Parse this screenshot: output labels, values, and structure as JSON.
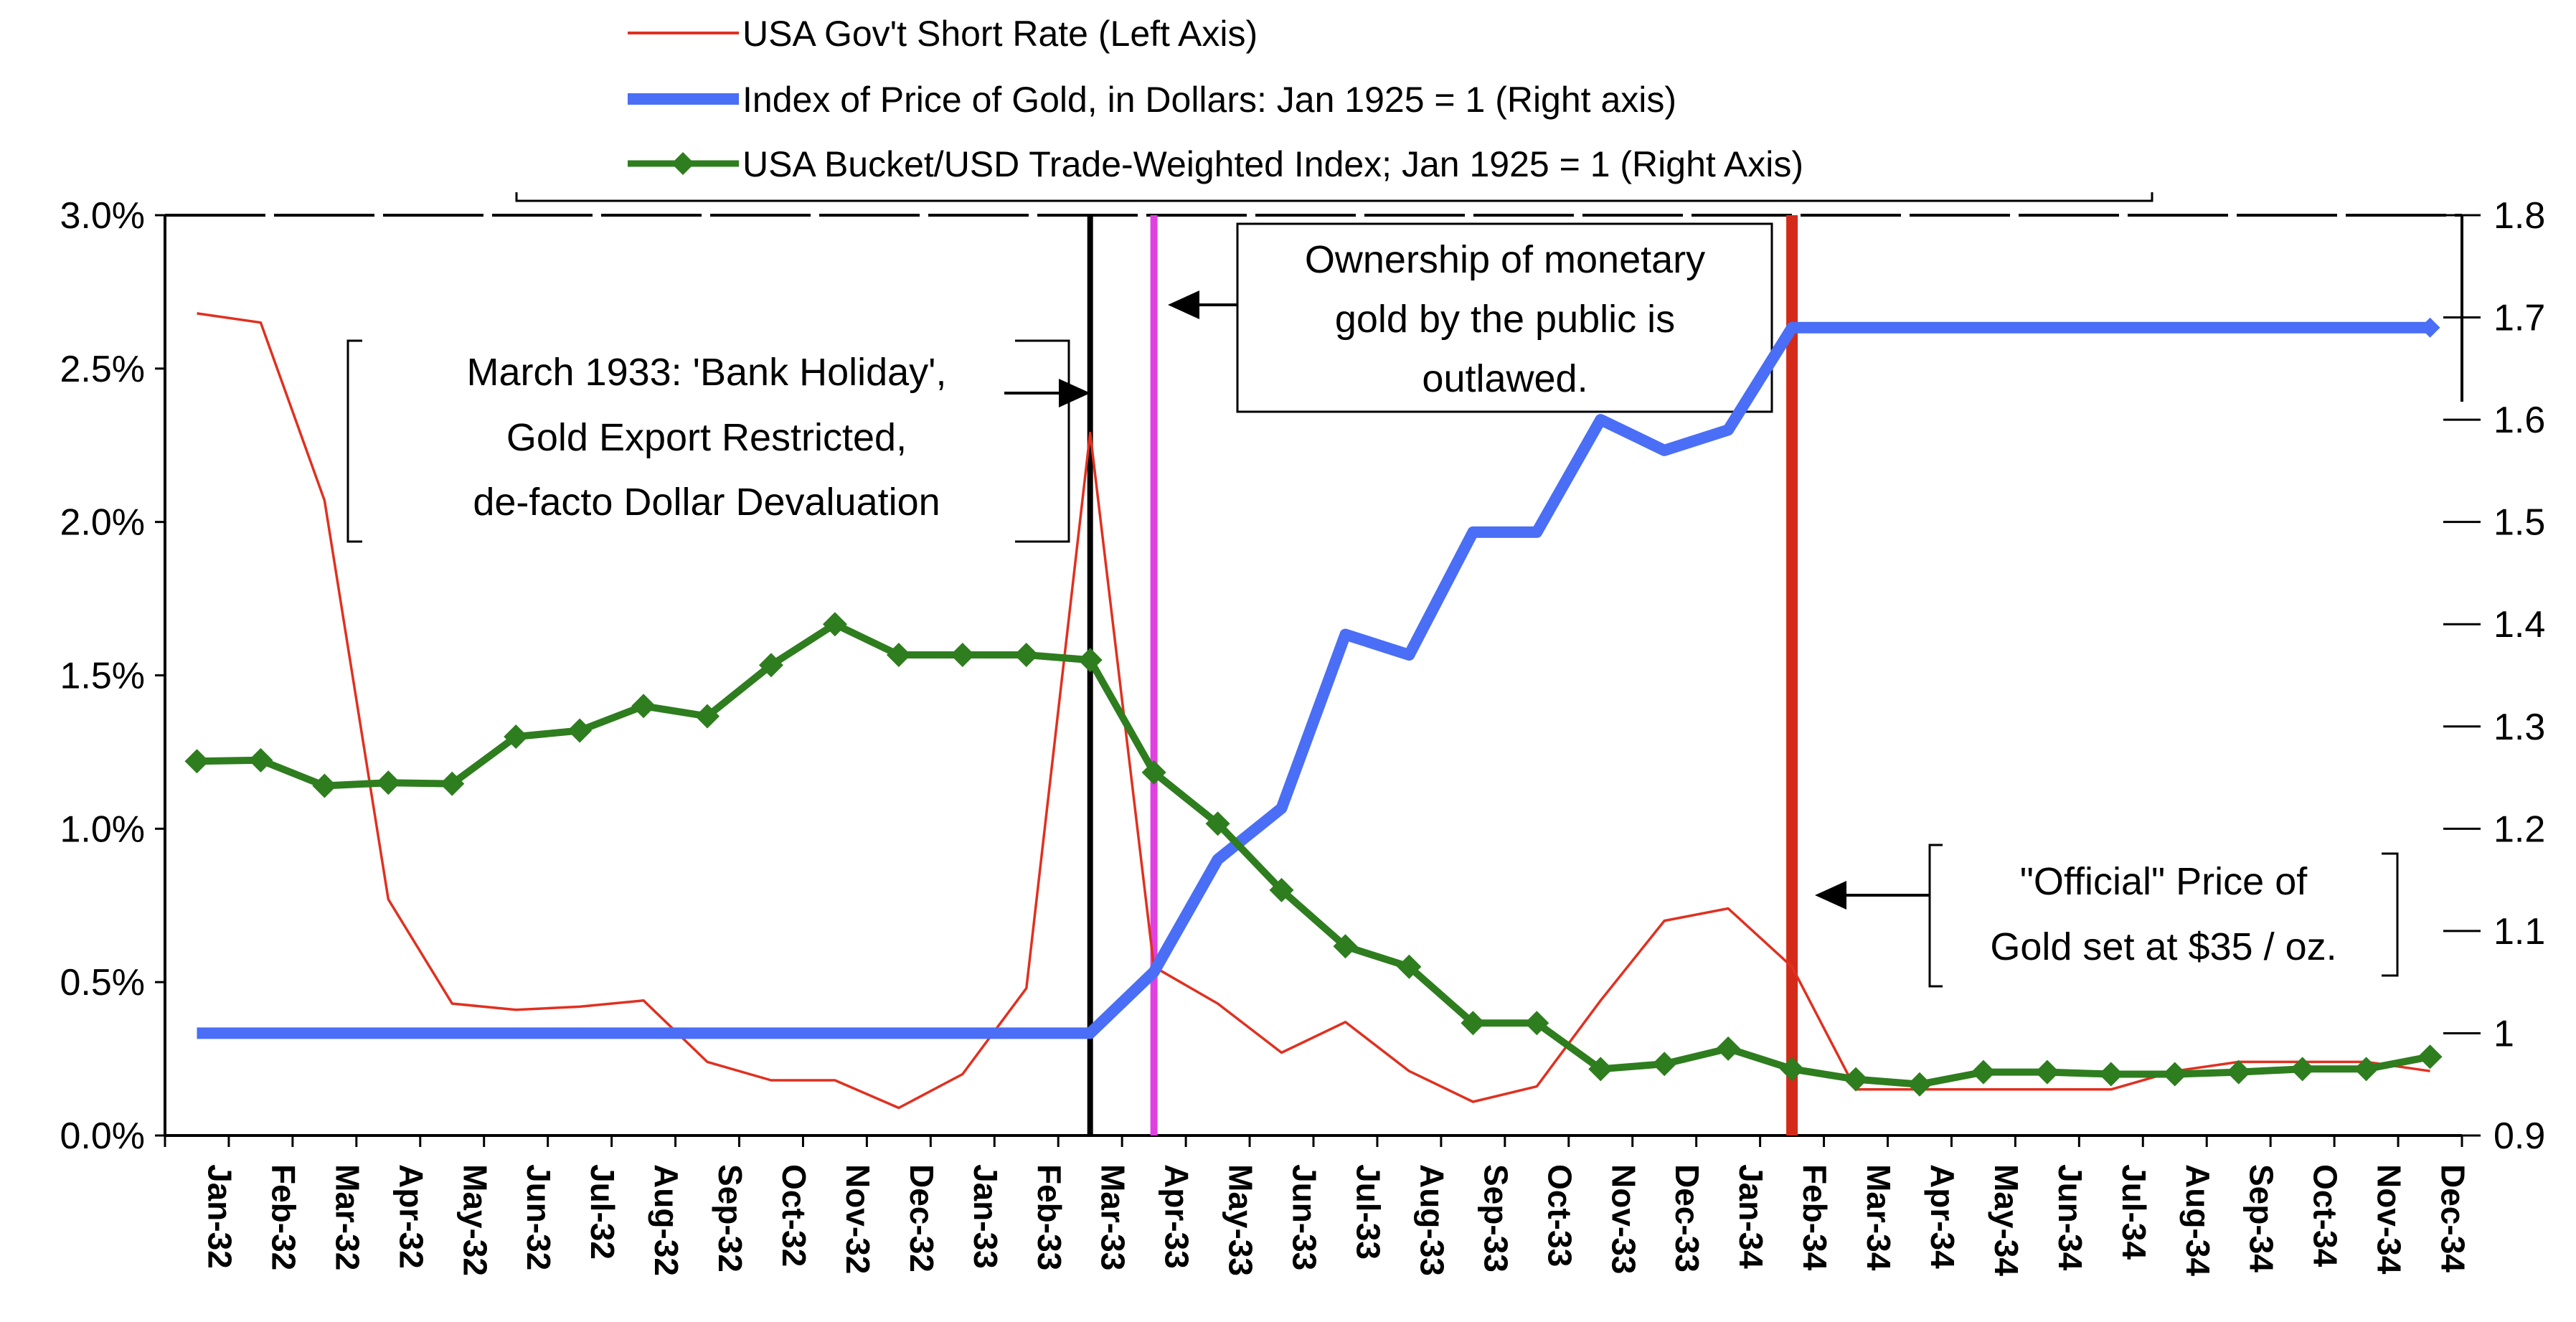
{
  "chart_data": {
    "type": "line",
    "title": "",
    "legend": {
      "placement": "top-center",
      "entries": [
        {
          "label": "USA Gov't Short Rate (Left Axis)",
          "series": "short_rate",
          "color": "#e03020"
        },
        {
          "label": "Index of Price of Gold, in Dollars: Jan 1925 = 1 (Right axis)",
          "series": "gold_price",
          "color": "#4a6ef5"
        },
        {
          "label": "USA Bucket/USD Trade-Weighted Index; Jan 1925 = 1 (Right Axis)",
          "series": "trade_weighted",
          "color": "#2e7d1e"
        }
      ]
    },
    "categories": [
      "Jan-32",
      "Feb-32",
      "Mar-32",
      "Apr-32",
      "May-32",
      "Jun-32",
      "Jul-32",
      "Aug-32",
      "Sep-32",
      "Oct-32",
      "Nov-32",
      "Dec-32",
      "Jan-33",
      "Feb-33",
      "Mar-33",
      "Apr-33",
      "May-33",
      "Jun-33",
      "Jul-33",
      "Aug-33",
      "Sep-33",
      "Oct-33",
      "Nov-33",
      "Dec-33",
      "Jan-34",
      "Feb-34",
      "Mar-34",
      "Apr-34",
      "May-34",
      "Jun-34",
      "Jul-34",
      "Aug-34",
      "Sep-34",
      "Oct-34",
      "Nov-34",
      "Dec-34"
    ],
    "left_axis": {
      "ylim": [
        0,
        0.03
      ],
      "ticks": [
        "0.0%",
        "0.5%",
        "1.0%",
        "1.5%",
        "2.0%",
        "2.5%",
        "3.0%"
      ]
    },
    "right_axis": {
      "ylim": [
        0.9,
        1.8
      ],
      "ticks": [
        "0.9",
        "1",
        "1.1",
        "1.2",
        "1.3",
        "1.4",
        "1.5",
        "1.6",
        "1.7",
        "1.8"
      ]
    },
    "series": [
      {
        "key": "short_rate",
        "name": "USA Gov't Short Rate (Left Axis)",
        "axis": "left",
        "values": [
          0.0268,
          0.0265,
          0.0207,
          0.0077,
          0.0043,
          0.0041,
          0.0042,
          0.0044,
          0.0024,
          0.0018,
          0.0018,
          0.0009,
          0.002,
          0.0048,
          0.0229,
          0.0055,
          0.0043,
          0.0027,
          0.0037,
          0.0021,
          0.0011,
          0.0016,
          0.0044,
          0.007,
          0.0074,
          0.0055,
          0.0015,
          0.0015,
          0.0015,
          0.0015,
          0.0015,
          0.0021,
          0.0024,
          0.0024,
          0.0024,
          0.0021
        ]
      },
      {
        "key": "gold_price",
        "name": "Index of Price of Gold, in Dollars: Jan 1925 = 1 (Right axis)",
        "axis": "right",
        "values": [
          1.0,
          1.0,
          1.0,
          1.0,
          1.0,
          1.0,
          1.0,
          1.0,
          1.0,
          1.0,
          1.0,
          1.0,
          1.0,
          1.0,
          1.0,
          1.06,
          1.17,
          1.22,
          1.39,
          1.37,
          1.49,
          1.49,
          1.6,
          1.57,
          1.59,
          1.69,
          1.69,
          1.69,
          1.69,
          1.69,
          1.69,
          1.69,
          1.69,
          1.69,
          1.69,
          1.69
        ]
      },
      {
        "key": "trade_weighted",
        "name": "USA Bucket/USD Trade-Weighted Index; Jan 1925 = 1 (Right Axis)",
        "axis": "right",
        "values": [
          1.266,
          1.267,
          1.242,
          1.245,
          1.244,
          1.29,
          1.296,
          1.32,
          1.31,
          1.36,
          1.4,
          1.37,
          1.37,
          1.37,
          1.365,
          1.255,
          1.205,
          1.14,
          1.085,
          1.065,
          1.01,
          1.01,
          0.965,
          0.97,
          0.985,
          0.965,
          0.955,
          0.95,
          0.962,
          0.962,
          0.96,
          0.96,
          0.962,
          0.965,
          0.965,
          0.977
        ]
      }
    ],
    "annotations": [
      {
        "key": "bank_holiday",
        "text": [
          "March 1933: 'Bank Holiday',",
          "Gold Export Restricted,",
          "de-facto Dollar Devaluation"
        ],
        "marker_category": "Mar-33",
        "marker_color": "#000000"
      },
      {
        "key": "ownership",
        "text": [
          "Ownership of monetary",
          "gold by the public is",
          "outlawed."
        ],
        "marker_category": "Apr-33",
        "marker_color": "#e040e0"
      },
      {
        "key": "official_price",
        "text": [
          "\"Official\" Price of",
          "Gold set at $35 / oz."
        ],
        "marker_category": "Feb-34",
        "marker_color": "#d42a1a"
      }
    ],
    "grid": false
  }
}
